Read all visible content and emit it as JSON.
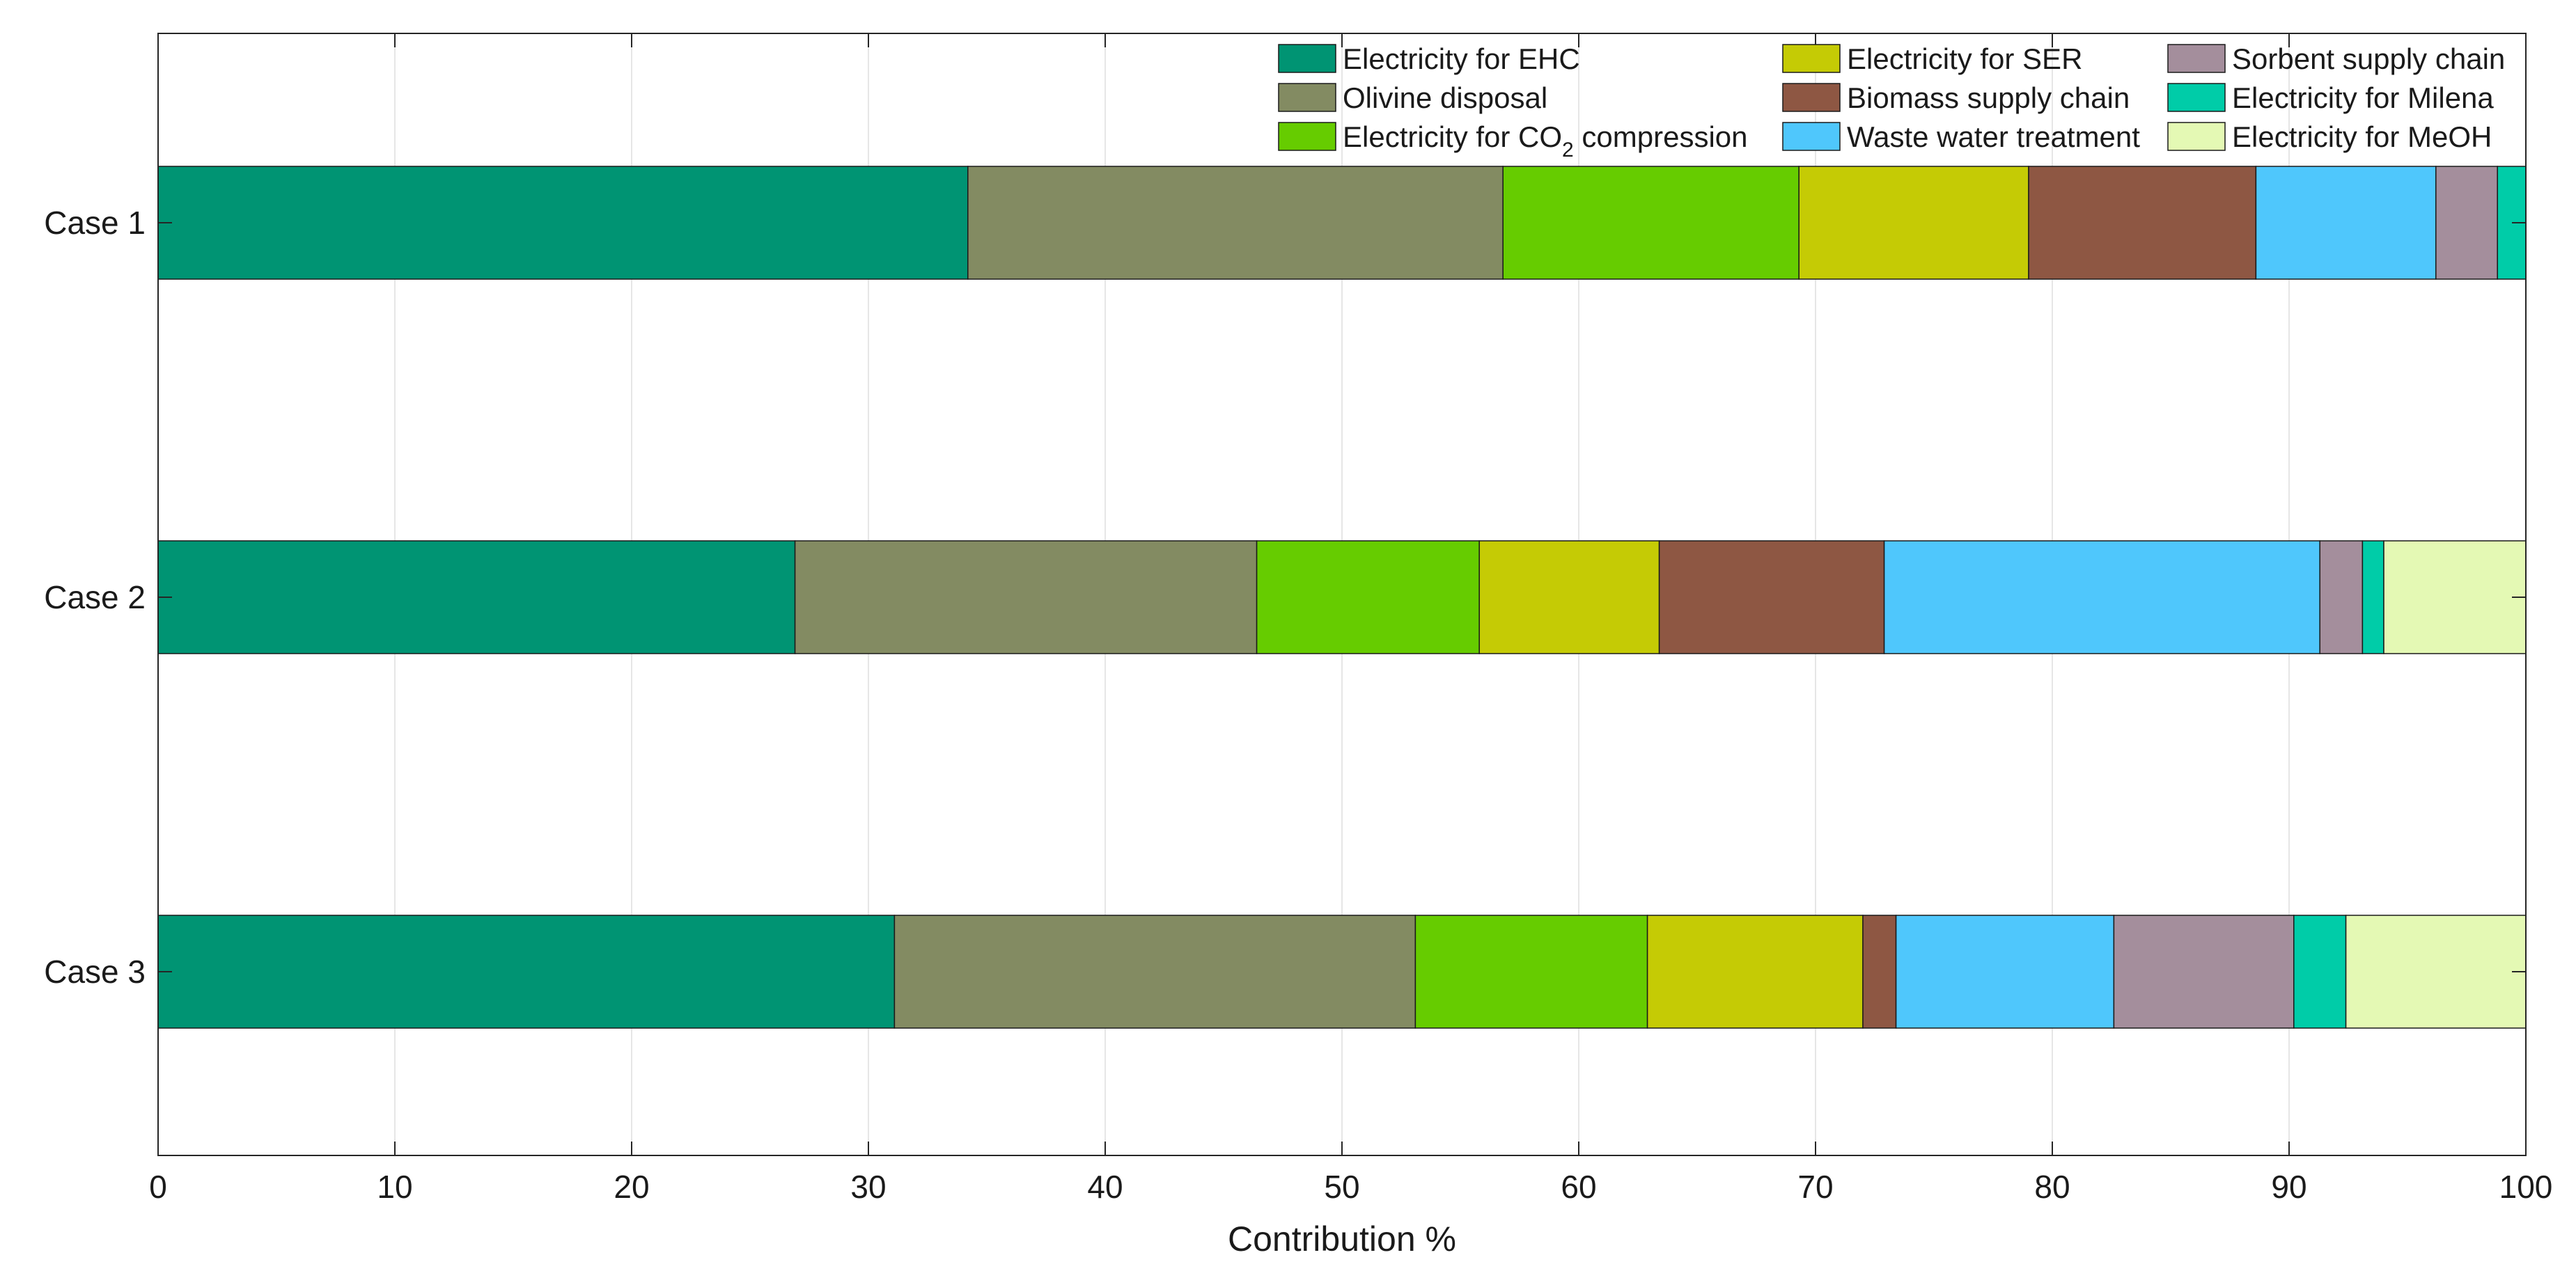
{
  "chart_data": {
    "type": "bar",
    "orientation": "horizontal",
    "stacked": true,
    "title": "",
    "xlabel": "Contribution %",
    "ylabel": "",
    "xlim": [
      0,
      100
    ],
    "xticks": [
      0,
      10,
      20,
      30,
      40,
      50,
      60,
      70,
      80,
      90,
      100
    ],
    "grid": "vertical",
    "legend_location": "top-right",
    "categories": [
      "Case 1",
      "Case 2",
      "Case 3"
    ],
    "series": [
      {
        "name": "Electricity for EHC",
        "label_main": "Electricity for EHC",
        "color": "#009473",
        "values": [
          34.2,
          26.9,
          31.1
        ]
      },
      {
        "name": "Olivine disposal",
        "label_main": "Olivine disposal",
        "color": "#838B62",
        "values": [
          22.6,
          19.5,
          22.0
        ]
      },
      {
        "name": "Electricity for CO2 compression",
        "label_main": "Electricity for CO",
        "label_sub": "2",
        "label_tail": " compression",
        "color": "#66CC00",
        "values": [
          12.5,
          9.4,
          9.8
        ]
      },
      {
        "name": "Electricity for SER",
        "label_main": "Electricity for SER",
        "color": "#C5CB05",
        "values": [
          9.7,
          7.6,
          9.1
        ]
      },
      {
        "name": "Biomass supply chain",
        "label_main": "Biomass supply chain",
        "color": "#8E5743",
        "values": [
          9.6,
          9.5,
          1.4
        ]
      },
      {
        "name": "Waste water treatment",
        "label_main": "Waste water treatment",
        "color": "#4FC7FC",
        "values": [
          7.6,
          18.4,
          9.2
        ]
      },
      {
        "name": "Sorbent supply chain",
        "label_main": "Sorbent supply chain",
        "color": "#A48E9C",
        "values": [
          2.6,
          1.8,
          7.6
        ]
      },
      {
        "name": "Electricity for Milena",
        "label_main": "Electricity for Milena",
        "color": "#00CCA8",
        "values": [
          1.2,
          0.9,
          2.2
        ]
      },
      {
        "name": "Electricity for MeOH",
        "label_main": "Electricity for MeOH",
        "color": "#E4F9B4",
        "values": [
          0.0,
          6.0,
          7.6
        ]
      }
    ]
  }
}
